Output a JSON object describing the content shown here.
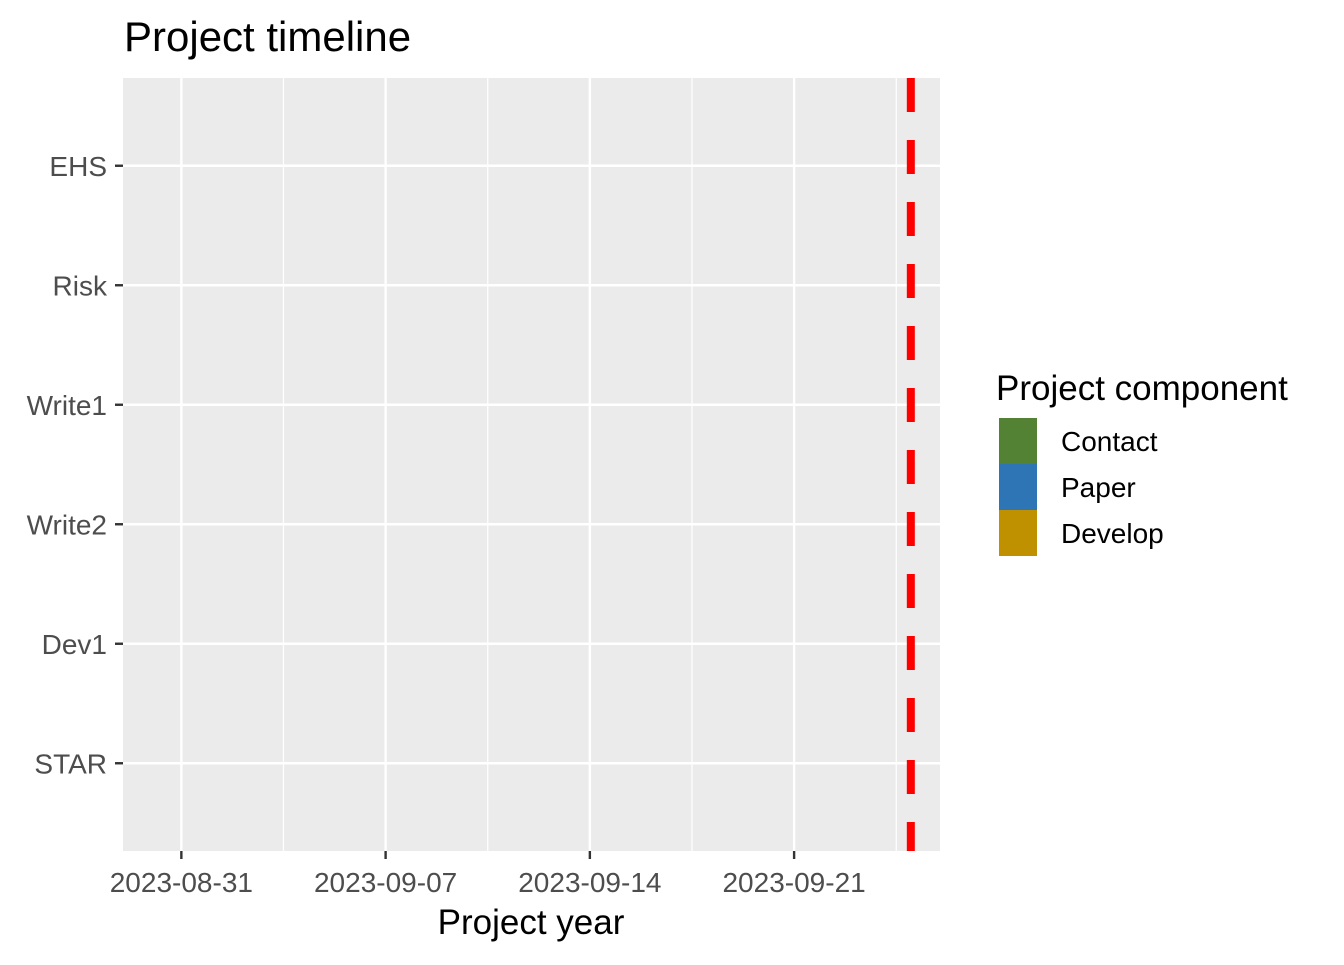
{
  "chart_data": {
    "type": "bar",
    "title": "Project timeline",
    "xlabel": "Project year",
    "ylabel": "",
    "x_axis": {
      "scale": "date",
      "range": [
        "2023-08-29",
        "2023-09-26"
      ],
      "ticks": [
        "2023-08-31",
        "2023-09-07",
        "2023-09-14",
        "2023-09-21"
      ]
    },
    "categories": [
      "EHS",
      "Risk",
      "Write1",
      "Write2",
      "Dev1",
      "STAR"
    ],
    "bars": [],
    "reference_line": {
      "date": "2023-09-25",
      "color": "#ff0000",
      "style": "dashed"
    },
    "legend": {
      "title": "Project component",
      "position": "right",
      "entries": [
        {
          "name": "Contact",
          "color": "#548235"
        },
        {
          "name": "Paper",
          "color": "#2e75b6"
        },
        {
          "name": "Develop",
          "color": "#bf9000"
        }
      ]
    },
    "panel_background": "#ebebeb",
    "grid": true
  }
}
